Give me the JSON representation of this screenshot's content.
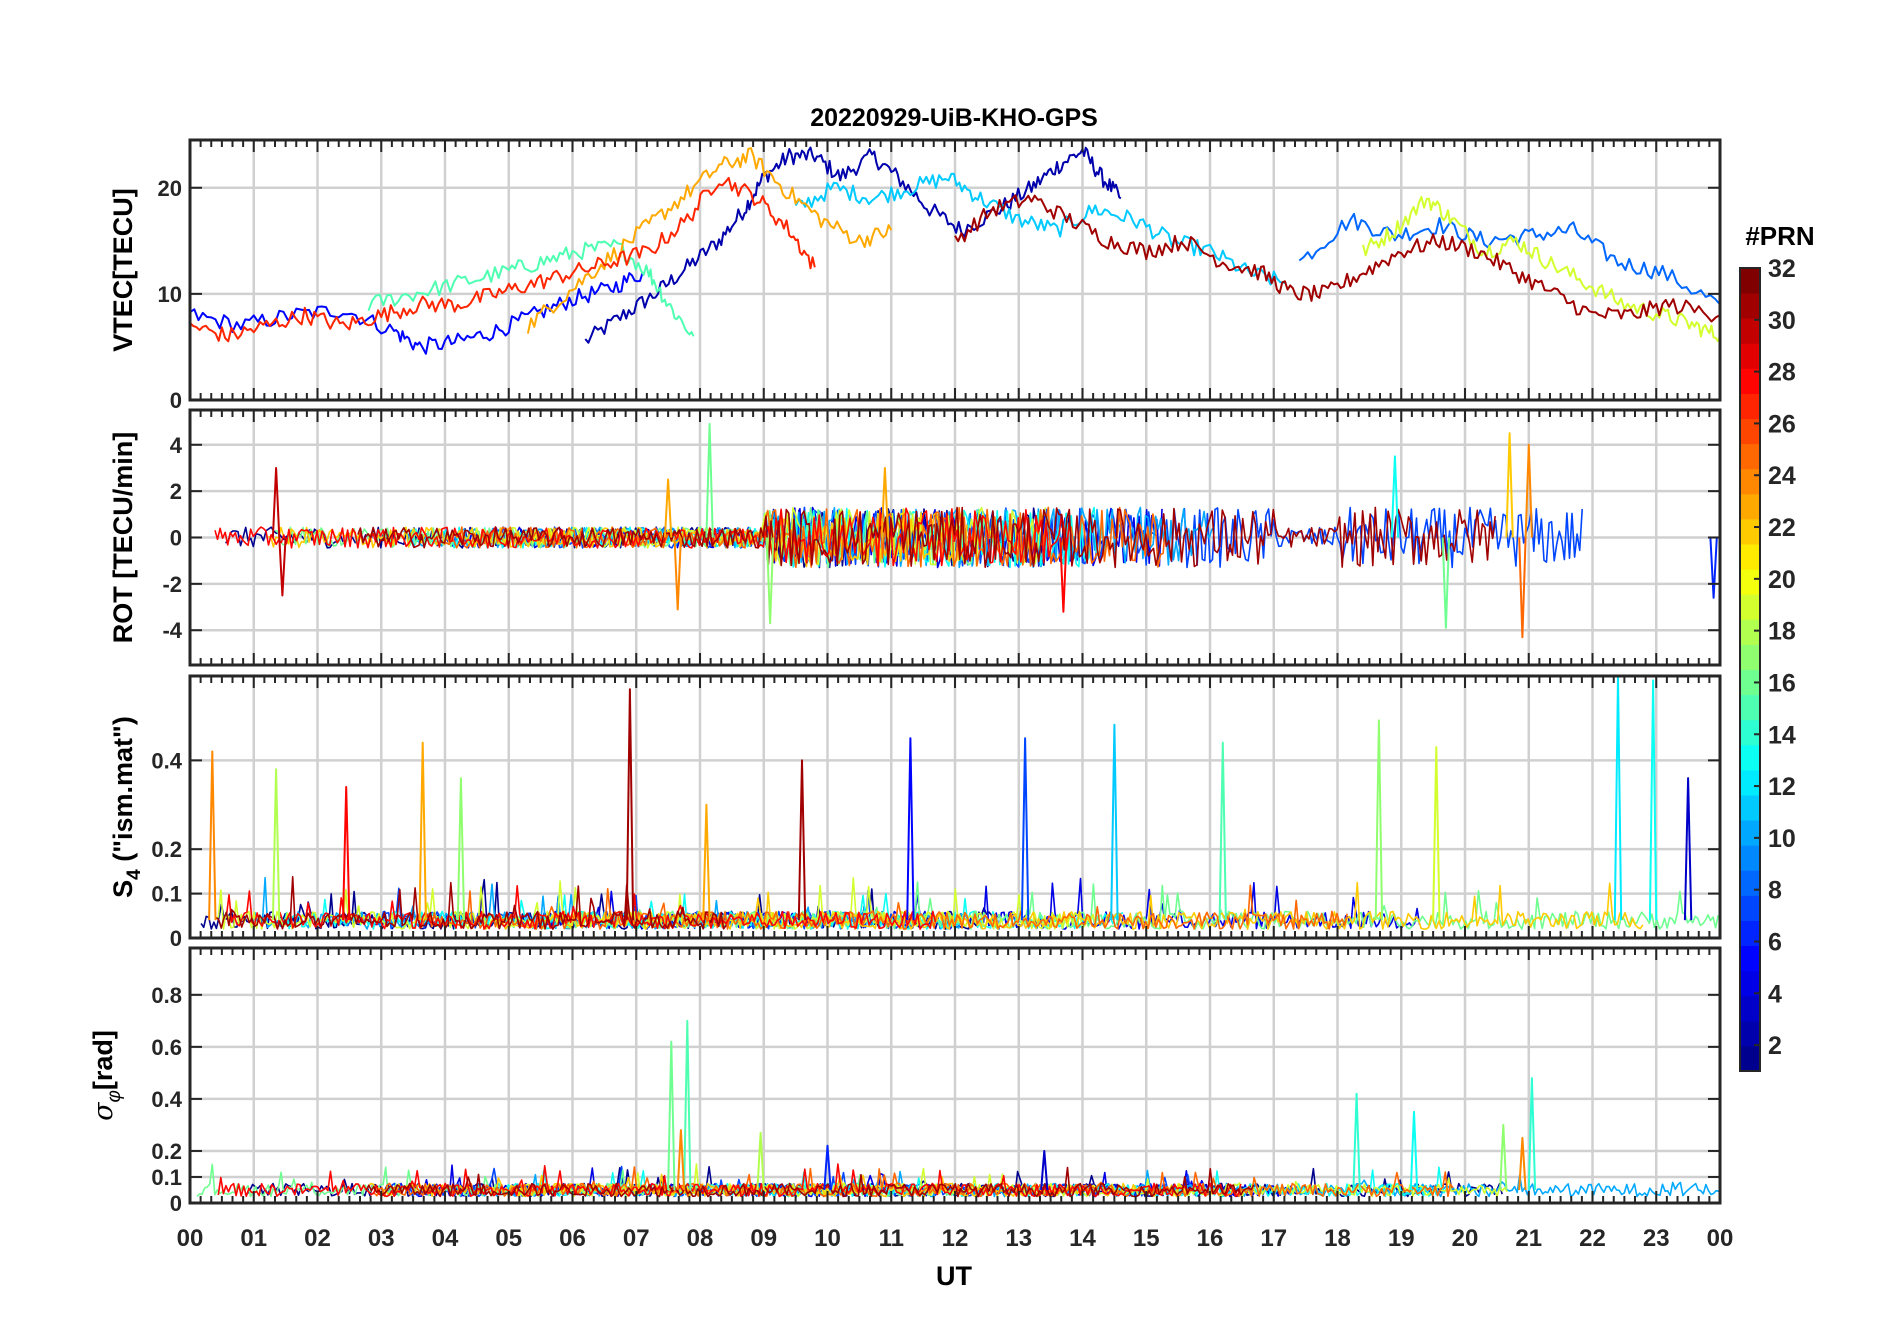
{
  "chart_data": {
    "title": "20220929-UiB-KHO-GPS",
    "type": "line",
    "x_axis": {
      "label": "UT",
      "range": [
        0,
        24
      ],
      "tick_labels": [
        "00",
        "01",
        "02",
        "03",
        "04",
        "05",
        "06",
        "07",
        "08",
        "09",
        "10",
        "11",
        "12",
        "13",
        "14",
        "15",
        "16",
        "17",
        "18",
        "19",
        "20",
        "21",
        "22",
        "23",
        "00"
      ]
    },
    "colorbar": {
      "title": "#PRN",
      "range": [
        1,
        32
      ],
      "tick_values": [
        2,
        4,
        6,
        8,
        10,
        12,
        14,
        16,
        18,
        20,
        22,
        24,
        26,
        28,
        30,
        32
      ],
      "colormap": "jet",
      "colors": [
        "#00008f",
        "#0000ff",
        "#0080ff",
        "#00ffff",
        "#80ff80",
        "#ffff00",
        "#ff8000",
        "#ff0000",
        "#800000"
      ]
    },
    "grid": true,
    "panels": [
      {
        "name": "vtec",
        "ylabel": "VTEC[TECU]",
        "ylim": [
          0,
          24.5
        ],
        "yticks": [
          0,
          10,
          20
        ],
        "ytick_labels": [
          "0",
          "10",
          "20"
        ],
        "description_series": [
          {
            "prn": 2,
            "x": [
              6.2,
              6.8,
              7.3,
              7.8,
              8.3,
              8.7,
              9.0,
              9.4,
              9.8,
              10.2,
              10.7,
              11.1,
              11.6,
              12.1,
              12.7,
              13.2,
              13.6,
              14.0,
              14.3,
              14.6
            ],
            "y": [
              5.5,
              8,
              10,
              12.5,
              15,
              18,
              21,
              23,
              23,
              21,
              23,
              21,
              18,
              16,
              18,
              20,
              22,
              23.5,
              21,
              19
            ]
          },
          {
            "prn": 5,
            "x": [
              0,
              0.8,
              1.6,
              2.4,
              3.2,
              3.6,
              4.2,
              4.8,
              5.4,
              6.0,
              6.6,
              7.1
            ],
            "y": [
              8,
              7,
              8,
              8.5,
              6.5,
              5,
              5.5,
              6.5,
              8,
              9.5,
              10.5,
              12
            ]
          },
          {
            "prn": 8,
            "x": [
              17.4,
              18.2,
              18.9,
              19.6,
              20.3,
              21.0,
              21.7,
              22.4,
              23.1,
              24
            ],
            "y": [
              13,
              17,
              15.5,
              16.5,
              15,
              15.5,
              16,
              13,
              12,
              9
            ]
          },
          {
            "prn": 11,
            "x": [
              9.5,
              10.1,
              10.7,
              11.3,
              11.9,
              12.4,
              13.0,
              13.6,
              14.2,
              14.8,
              15.4,
              16.0,
              16.6,
              17.2
            ],
            "y": [
              18,
              20,
              19,
              20,
              21,
              19,
              17,
              16,
              18,
              17,
              15,
              14,
              12,
              11
            ]
          },
          {
            "prn": 15,
            "x": [
              2.8,
              3.5,
              4.2,
              4.9,
              5.5,
              6.1,
              6.7,
              7.2,
              7.5,
              7.9
            ],
            "y": [
              9,
              10,
              11,
              12,
              13,
              14,
              14.5,
              12,
              9,
              6
            ]
          },
          {
            "prn": 19,
            "x": [
              18.4,
              18.9,
              19.4,
              19.8,
              20.3,
              20.8,
              21.3,
              21.9,
              22.5,
              23.1,
              23.6,
              24
            ],
            "y": [
              14,
              16,
              19,
              17,
              14,
              15,
              13,
              11,
              9,
              8,
              7,
              6
            ]
          },
          {
            "prn": 23,
            "x": [
              5.3,
              5.9,
              6.5,
              7.1,
              7.7,
              8.3,
              8.8,
              9.3,
              9.9,
              10.5,
              11.0
            ],
            "y": [
              7,
              10,
              13,
              16,
              19,
              22,
              23,
              20,
              17,
              15,
              16
            ]
          },
          {
            "prn": 27,
            "x": [
              0,
              0.6,
              1.2,
              1.8,
              2.4,
              3.0,
              3.6,
              4.2,
              4.8,
              5.4,
              6.0,
              6.6,
              7.2,
              7.8,
              8.3,
              8.9,
              9.4,
              9.8
            ],
            "y": [
              7,
              6,
              7,
              8,
              7,
              8,
              9,
              9,
              10,
              11,
              12,
              13,
              14,
              17,
              21,
              19,
              16,
              12.5
            ]
          },
          {
            "prn": 31,
            "x": [
              12.0,
              12.6,
              13.2,
              13.8,
              14.4,
              15.0,
              15.6,
              16.2,
              16.8,
              17.3,
              17.8,
              18.4,
              19.0,
              19.6,
              20.2,
              20.8,
              21.4,
              22.0,
              22.6,
              23.2,
              24
            ],
            "y": [
              15,
              18,
              19,
              17,
              15,
              14,
              15,
              13,
              12,
              10,
              10,
              12,
              14,
              15,
              14,
              12,
              10,
              8,
              8,
              9,
              8
            ]
          }
        ]
      },
      {
        "name": "rot",
        "ylabel": "ROT [TECU/min]",
        "ylim": [
          -5.5,
          5.5
        ],
        "yticks": [
          -4,
          -2,
          0,
          2,
          4
        ],
        "ytick_labels": [
          "-4",
          "-2",
          "0",
          "2",
          "4"
        ],
        "spike_peaks": [
          {
            "x": 1.35,
            "y": 3.0,
            "prn": 30
          },
          {
            "x": 1.45,
            "y": -2.5,
            "prn": 30
          },
          {
            "x": 7.5,
            "y": 2.5,
            "prn": 23
          },
          {
            "x": 7.65,
            "y": -3.1,
            "prn": 24
          },
          {
            "x": 8.15,
            "y": 4.9,
            "prn": 16
          },
          {
            "x": 9.1,
            "y": -3.7,
            "prn": 17
          },
          {
            "x": 10.9,
            "y": 3.0,
            "prn": 23
          },
          {
            "x": 13.7,
            "y": -3.2,
            "prn": 28
          },
          {
            "x": 18.9,
            "y": 3.5,
            "prn": 13
          },
          {
            "x": 19.7,
            "y": -3.9,
            "prn": 16
          },
          {
            "x": 20.7,
            "y": 4.5,
            "prn": 22
          },
          {
            "x": 21.0,
            "y": 4.0,
            "prn": 24
          },
          {
            "x": 20.9,
            "y": -4.3,
            "prn": 25
          },
          {
            "x": 23.9,
            "y": -2.6,
            "prn": 6
          }
        ]
      },
      {
        "name": "s4",
        "ylabel": "S4 (\"ism.mat\")",
        "ylabel_main": "S",
        "ylabel_sub": "4",
        "ylabel_rest": " (\"ism.mat\")",
        "ylim": [
          0,
          0.59
        ],
        "yticks": [
          0,
          0.1,
          0.2,
          0.4
        ],
        "ytick_labels": [
          "0",
          "0.1",
          "0.2",
          "0.4"
        ],
        "spike_peaks": [
          {
            "x": 0.35,
            "y": 0.42,
            "prn": 24
          },
          {
            "x": 1.35,
            "y": 0.38,
            "prn": 18
          },
          {
            "x": 2.45,
            "y": 0.34,
            "prn": 28
          },
          {
            "x": 3.65,
            "y": 0.44,
            "prn": 23
          },
          {
            "x": 4.25,
            "y": 0.36,
            "prn": 17
          },
          {
            "x": 6.9,
            "y": 0.56,
            "prn": 31
          },
          {
            "x": 8.1,
            "y": 0.3,
            "prn": 23
          },
          {
            "x": 9.6,
            "y": 0.4,
            "prn": 31
          },
          {
            "x": 11.3,
            "y": 0.45,
            "prn": 5
          },
          {
            "x": 13.1,
            "y": 0.45,
            "prn": 7
          },
          {
            "x": 14.5,
            "y": 0.48,
            "prn": 11
          },
          {
            "x": 16.2,
            "y": 0.44,
            "prn": 15
          },
          {
            "x": 18.65,
            "y": 0.49,
            "prn": 17
          },
          {
            "x": 19.55,
            "y": 0.43,
            "prn": 19
          },
          {
            "x": 22.4,
            "y": 0.59,
            "prn": 12
          },
          {
            "x": 22.95,
            "y": 0.58,
            "prn": 13
          },
          {
            "x": 23.5,
            "y": 0.36,
            "prn": 3
          }
        ]
      },
      {
        "name": "sigma_phi",
        "ylabel": "σφ[rad]",
        "ylabel_main": "σ",
        "ylabel_sub": "φ",
        "ylabel_rest": "[rad]",
        "ylim": [
          0,
          0.98
        ],
        "yticks": [
          0,
          0.1,
          0.2,
          0.4,
          0.6,
          0.8
        ],
        "ytick_labels": [
          "0",
          "0.1",
          "0.2",
          "0.4",
          "0.6",
          "0.8"
        ],
        "spike_peaks": [
          {
            "x": 7.55,
            "y": 0.62,
            "prn": 16
          },
          {
            "x": 7.8,
            "y": 0.7,
            "prn": 15
          },
          {
            "x": 7.7,
            "y": 0.28,
            "prn": 24
          },
          {
            "x": 8.95,
            "y": 0.27,
            "prn": 18
          },
          {
            "x": 10.0,
            "y": 0.22,
            "prn": 6
          },
          {
            "x": 13.4,
            "y": 0.2,
            "prn": 3
          },
          {
            "x": 18.3,
            "y": 0.42,
            "prn": 14
          },
          {
            "x": 19.2,
            "y": 0.35,
            "prn": 13
          },
          {
            "x": 20.6,
            "y": 0.3,
            "prn": 17
          },
          {
            "x": 21.05,
            "y": 0.48,
            "prn": 14
          },
          {
            "x": 20.9,
            "y": 0.25,
            "prn": 24
          }
        ]
      }
    ]
  }
}
